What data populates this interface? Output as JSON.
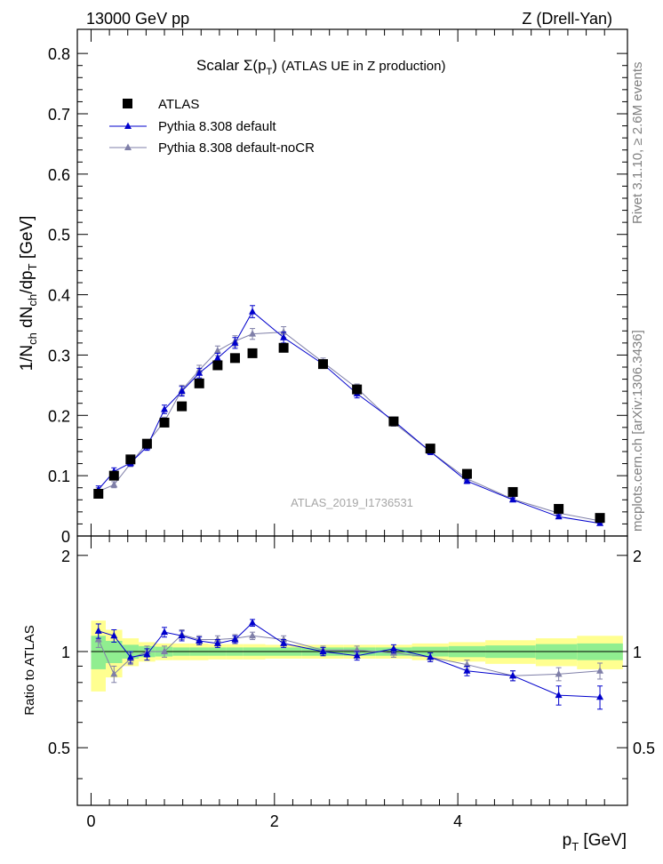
{
  "header": {
    "left": "13000 GeV pp",
    "right": "Z (Drell-Yan)"
  },
  "side_labels": {
    "rivet": "Rivet 3.1.10, ≥ 2.6M events",
    "mcplots": "mcplots.cern.ch [arXiv:1306.3436]"
  },
  "plot_title": "Scalar Σ(p_T) (ATLAS UE in Z production)",
  "legend": {
    "data": "ATLAS",
    "mc1": "Pythia 8.308 default",
    "mc2": "Pythia 8.308 default-noCR"
  },
  "analysis_id": "ATLAS_2019_I1736531",
  "colors": {
    "data": "#000000",
    "mc1": "#0000cc",
    "mc2": "#7f7fa8",
    "band_stat": "#90ee90",
    "band_total": "#ffff90"
  },
  "chart_data": [
    {
      "type": "scatter",
      "panel": "main",
      "title": "Scalar Σ(p_T) (ATLAS UE in Z production)",
      "xlabel": "p_T [GeV]",
      "ylabel": "1/N_ch dN_ch/dp_T [GeV]",
      "xlim": [
        -0.15,
        5.85
      ],
      "ylim": [
        0,
        0.84
      ],
      "yticks": [
        "0",
        "0.1",
        "0.2",
        "0.3",
        "0.4",
        "0.5",
        "0.6",
        "0.7",
        "0.8"
      ],
      "x": [
        0.08,
        0.25,
        0.43,
        0.61,
        0.8,
        0.99,
        1.18,
        1.38,
        1.57,
        1.76,
        2.1,
        2.53,
        2.9,
        3.3,
        3.7,
        4.1,
        4.6,
        5.1,
        5.55
      ],
      "series": [
        {
          "name": "ATLAS",
          "marker": "square",
          "values": [
            0.07,
            0.1,
            0.127,
            0.153,
            0.188,
            0.215,
            0.253,
            0.283,
            0.295,
            0.303,
            0.312,
            0.285,
            0.243,
            0.19,
            0.145,
            0.103,
            0.073,
            0.045,
            0.03
          ]
        },
        {
          "name": "Pythia 8.308 default",
          "marker": "triangle",
          "values": [
            0.077,
            0.107,
            0.121,
            0.148,
            0.21,
            0.24,
            0.27,
            0.295,
            0.32,
            0.372,
            0.329,
            0.285,
            0.236,
            0.191,
            0.14,
            0.091,
            0.06,
            0.032,
            0.021
          ],
          "errors": [
            0.006,
            0.006,
            0.005,
            0.006,
            0.007,
            0.008,
            0.008,
            0.008,
            0.009,
            0.01,
            0.009,
            0.007,
            0.007,
            0.006,
            0.005,
            0.004,
            0.003,
            0.003,
            0.002
          ]
        },
        {
          "name": "Pythia 8.308 default-noCR",
          "marker": "triangle",
          "values": [
            0.074,
            0.085,
            0.12,
            0.154,
            0.19,
            0.242,
            0.275,
            0.307,
            0.323,
            0.335,
            0.338,
            0.288,
            0.245,
            0.188,
            0.14,
            0.095,
            0.061,
            0.038,
            0.025
          ],
          "errors": [
            0.006,
            0.005,
            0.005,
            0.006,
            0.007,
            0.008,
            0.008,
            0.008,
            0.009,
            0.009,
            0.009,
            0.007,
            0.007,
            0.006,
            0.005,
            0.004,
            0.003,
            0.003,
            0.002
          ]
        }
      ]
    },
    {
      "type": "scatter",
      "panel": "ratio",
      "xlabel": "p_T [GeV]",
      "ylabel": "Ratio to ATLAS",
      "xlim": [
        -0.15,
        5.85
      ],
      "ylim": [
        0.33,
        2.3
      ],
      "log_y": true,
      "yticks": [
        "0.5",
        "1",
        "2"
      ],
      "xticks": [
        "0",
        "2",
        "4"
      ],
      "x": [
        0.08,
        0.25,
        0.43,
        0.61,
        0.8,
        0.99,
        1.18,
        1.38,
        1.57,
        1.76,
        2.1,
        2.53,
        2.9,
        3.3,
        3.7,
        4.1,
        4.6,
        5.1,
        5.55
      ],
      "bin_edges": [
        0.0,
        0.16,
        0.34,
        0.52,
        0.7,
        0.89,
        1.08,
        1.28,
        1.47,
        1.66,
        1.9,
        2.3,
        2.75,
        3.1,
        3.5,
        3.9,
        4.3,
        4.85,
        5.3,
        5.8
      ],
      "band_stat": [
        0.12,
        0.08,
        0.05,
        0.04,
        0.035,
        0.03,
        0.03,
        0.03,
        0.03,
        0.03,
        0.03,
        0.03,
        0.03,
        0.03,
        0.035,
        0.04,
        0.045,
        0.055,
        0.06
      ],
      "band_total": [
        0.25,
        0.17,
        0.1,
        0.07,
        0.06,
        0.06,
        0.06,
        0.055,
        0.055,
        0.055,
        0.05,
        0.05,
        0.05,
        0.05,
        0.06,
        0.07,
        0.085,
        0.1,
        0.12
      ],
      "series": [
        {
          "name": "Pythia 8.308 default",
          "values": [
            1.16,
            1.12,
            0.96,
            0.98,
            1.15,
            1.12,
            1.08,
            1.06,
            1.09,
            1.23,
            1.06,
            1.0,
            0.97,
            1.02,
            0.96,
            0.87,
            0.84,
            0.73,
            0.72
          ],
          "errors": [
            0.06,
            0.05,
            0.04,
            0.04,
            0.04,
            0.04,
            0.03,
            0.03,
            0.03,
            0.03,
            0.03,
            0.03,
            0.03,
            0.03,
            0.03,
            0.03,
            0.03,
            0.05,
            0.06
          ]
        },
        {
          "name": "Pythia 8.308 default-noCR",
          "values": [
            1.09,
            0.85,
            0.95,
            1.0,
            1.0,
            1.13,
            1.09,
            1.09,
            1.1,
            1.12,
            1.09,
            1.01,
            1.01,
            0.99,
            0.96,
            0.91,
            0.84,
            0.85,
            0.87
          ],
          "errors": [
            0.06,
            0.05,
            0.04,
            0.04,
            0.04,
            0.04,
            0.03,
            0.03,
            0.03,
            0.03,
            0.03,
            0.03,
            0.03,
            0.03,
            0.03,
            0.03,
            0.03,
            0.04,
            0.05
          ]
        }
      ]
    }
  ]
}
